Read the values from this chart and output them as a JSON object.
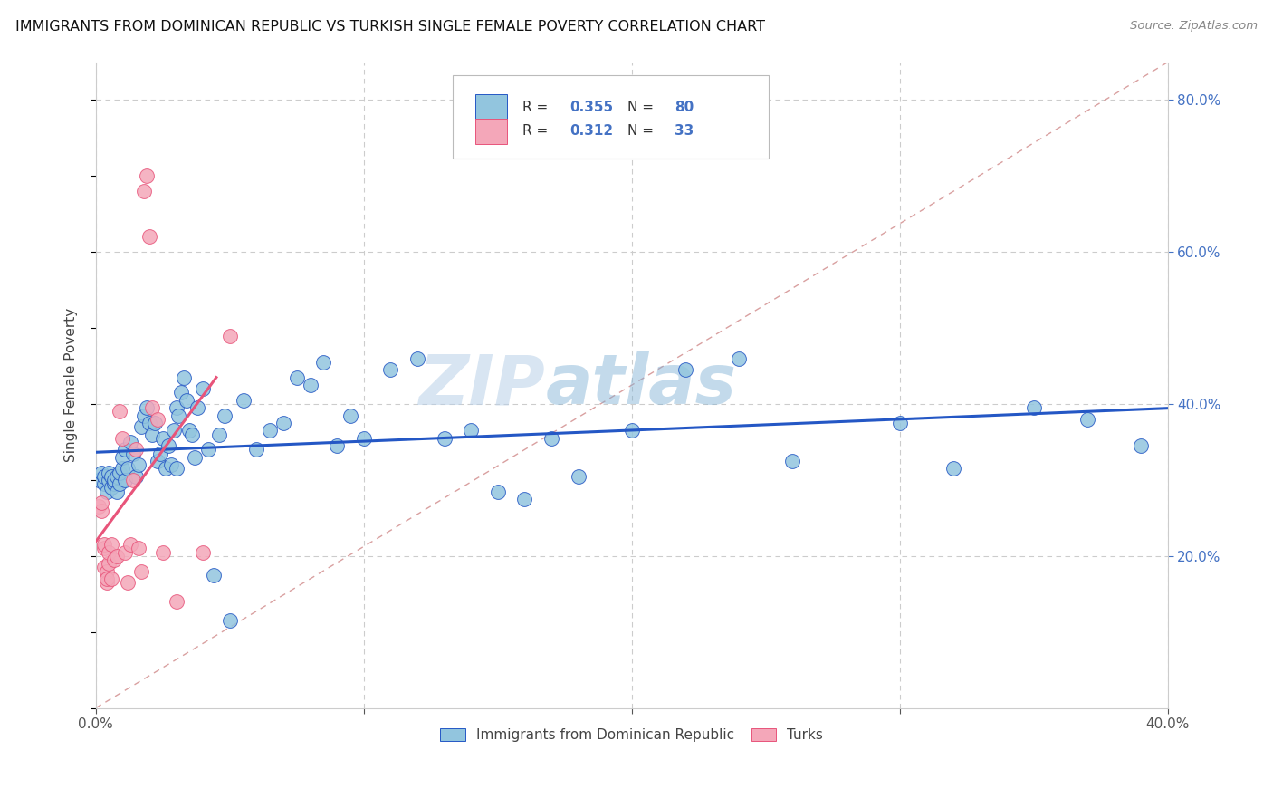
{
  "title": "IMMIGRANTS FROM DOMINICAN REPUBLIC VS TURKISH SINGLE FEMALE POVERTY CORRELATION CHART",
  "source": "Source: ZipAtlas.com",
  "ylabel_label": "Single Female Poverty",
  "xlim": [
    0.0,
    0.4
  ],
  "ylim": [
    0.0,
    0.85
  ],
  "xticks": [
    0.0,
    0.1,
    0.2,
    0.3,
    0.4
  ],
  "bottom_tick_labels": [
    "0.0%",
    "",
    "",
    "",
    "40.0%"
  ],
  "right_tick_labels": [
    "20.0%",
    "40.0%",
    "60.0%",
    "80.0%"
  ],
  "r_val1": "0.355",
  "n_val1": "80",
  "r_val2": "0.312",
  "n_val2": "33",
  "color_blue": "#92C5DE",
  "color_pink": "#F4A7B9",
  "color_blue_text": "#4472C4",
  "line_blue": "#2457C5",
  "line_pink": "#E8547A",
  "line_diag": "#D9A0A0",
  "watermark_zip": "ZIP",
  "watermark_atlas": "atlas",
  "legend1_label": "Immigrants from Dominican Republic",
  "legend2_label": "Turks",
  "blue_x": [
    0.001,
    0.002,
    0.003,
    0.003,
    0.004,
    0.005,
    0.005,
    0.006,
    0.006,
    0.007,
    0.007,
    0.008,
    0.008,
    0.009,
    0.009,
    0.01,
    0.01,
    0.011,
    0.011,
    0.012,
    0.013,
    0.014,
    0.015,
    0.016,
    0.017,
    0.018,
    0.019,
    0.02,
    0.021,
    0.022,
    0.023,
    0.024,
    0.025,
    0.026,
    0.027,
    0.028,
    0.029,
    0.03,
    0.03,
    0.031,
    0.032,
    0.033,
    0.034,
    0.035,
    0.036,
    0.037,
    0.038,
    0.04,
    0.042,
    0.044,
    0.046,
    0.048,
    0.05,
    0.055,
    0.06,
    0.065,
    0.07,
    0.075,
    0.08,
    0.085,
    0.09,
    0.095,
    0.1,
    0.11,
    0.12,
    0.13,
    0.14,
    0.15,
    0.16,
    0.17,
    0.18,
    0.2,
    0.22,
    0.24,
    0.26,
    0.3,
    0.32,
    0.35,
    0.37,
    0.39
  ],
  "blue_y": [
    0.3,
    0.31,
    0.295,
    0.305,
    0.285,
    0.3,
    0.31,
    0.305,
    0.29,
    0.295,
    0.3,
    0.285,
    0.305,
    0.295,
    0.31,
    0.315,
    0.33,
    0.34,
    0.3,
    0.315,
    0.35,
    0.335,
    0.305,
    0.32,
    0.37,
    0.385,
    0.395,
    0.375,
    0.36,
    0.375,
    0.325,
    0.335,
    0.355,
    0.315,
    0.345,
    0.32,
    0.365,
    0.395,
    0.315,
    0.385,
    0.415,
    0.435,
    0.405,
    0.365,
    0.36,
    0.33,
    0.395,
    0.42,
    0.34,
    0.175,
    0.36,
    0.385,
    0.115,
    0.405,
    0.34,
    0.365,
    0.375,
    0.435,
    0.425,
    0.455,
    0.345,
    0.385,
    0.355,
    0.445,
    0.46,
    0.355,
    0.365,
    0.285,
    0.275,
    0.355,
    0.305,
    0.365,
    0.445,
    0.46,
    0.325,
    0.375,
    0.315,
    0.395,
    0.38,
    0.345
  ],
  "pink_x": [
    0.001,
    0.002,
    0.002,
    0.003,
    0.003,
    0.003,
    0.004,
    0.004,
    0.004,
    0.005,
    0.005,
    0.006,
    0.006,
    0.007,
    0.008,
    0.009,
    0.01,
    0.011,
    0.012,
    0.013,
    0.014,
    0.015,
    0.016,
    0.017,
    0.018,
    0.019,
    0.02,
    0.021,
    0.023,
    0.025,
    0.03,
    0.04,
    0.05
  ],
  "pink_y": [
    0.265,
    0.26,
    0.27,
    0.21,
    0.215,
    0.185,
    0.18,
    0.165,
    0.17,
    0.19,
    0.205,
    0.215,
    0.17,
    0.195,
    0.2,
    0.39,
    0.355,
    0.205,
    0.165,
    0.215,
    0.3,
    0.34,
    0.21,
    0.18,
    0.68,
    0.7,
    0.62,
    0.395,
    0.38,
    0.205,
    0.14,
    0.205,
    0.49
  ]
}
